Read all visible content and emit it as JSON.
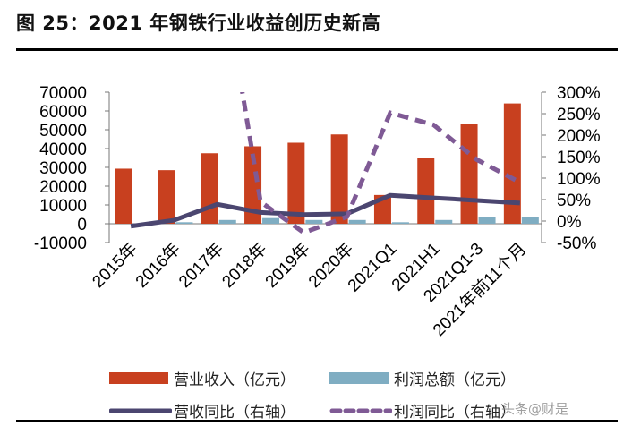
{
  "title": "图 25：2021 年钢铁行业收益创历史新高",
  "watermark": "头条@财是",
  "colors": {
    "revenue": "#C8401F",
    "profit": "#7FADC2",
    "revenue_yoy": "#4B4670",
    "profit_yoy": "#7F5A95"
  },
  "chart_data": {
    "type": "bar+line",
    "title": "",
    "categories": [
      "2015年",
      "2016年",
      "2017年",
      "2018年",
      "2019年",
      "2020年",
      "2021Q1",
      "2021H1",
      "2021Q1-3",
      "2021年前11个月"
    ],
    "left_axis": {
      "ylim": [
        -10000,
        70000
      ],
      "ticks": [
        "-10000",
        "0",
        "10000",
        "20000",
        "30000",
        "40000",
        "50000",
        "60000",
        "70000"
      ]
    },
    "right_axis": {
      "ylim": [
        -50,
        300
      ],
      "ticks": [
        "-50%",
        "0%",
        "50%",
        "100%",
        "150%",
        "200%",
        "250%",
        "300%"
      ]
    },
    "grid": false,
    "legend_placement": "bottom",
    "series": [
      {
        "name": "营业收入（亿元）",
        "type": "bar",
        "axis": "left",
        "values": [
          29300,
          28500,
          37500,
          41200,
          43100,
          47500,
          15300,
          34800,
          53200,
          64000
        ]
      },
      {
        "name": "利润总额（亿元）",
        "type": "bar",
        "axis": "left",
        "values": [
          -700,
          800,
          2000,
          3000,
          2000,
          2000,
          800,
          2000,
          3500,
          3500
        ]
      },
      {
        "name": "营收同比（右轴）",
        "type": "line",
        "style": "solid",
        "axis": "right",
        "values": [
          -12,
          2,
          39,
          20,
          15,
          17,
          60,
          54,
          48,
          42
        ]
      },
      {
        "name": "利润同比（右轴）",
        "type": "line",
        "style": "dashed",
        "axis": "right",
        "values": [
          null,
          null,
          650,
          45,
          -27,
          10,
          252,
          224,
          143,
          90
        ]
      }
    ]
  }
}
